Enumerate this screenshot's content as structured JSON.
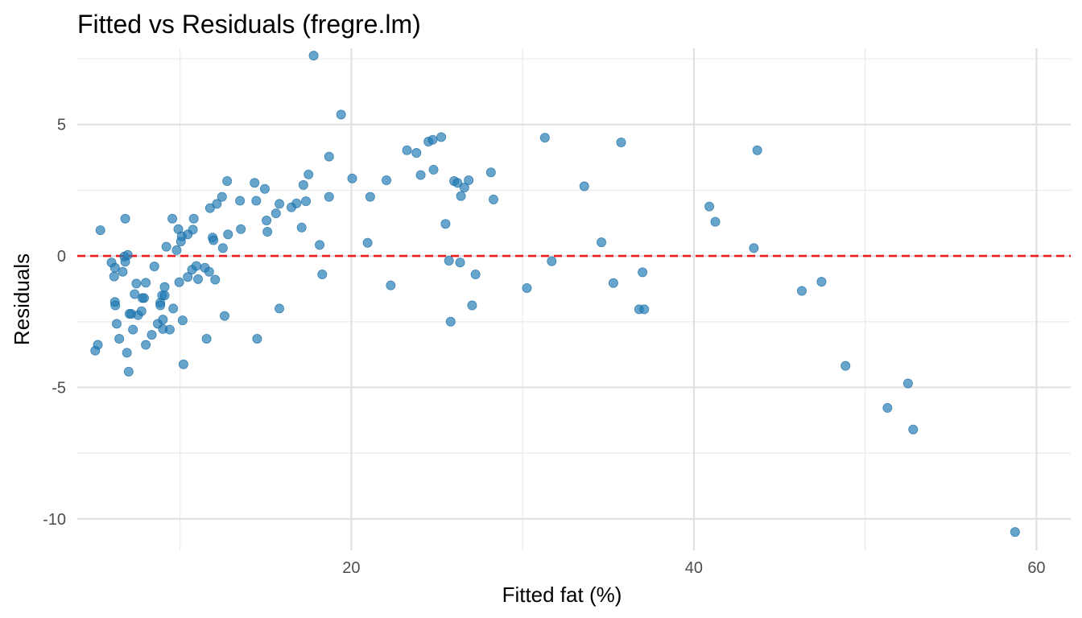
{
  "chart_data": {
    "type": "scatter",
    "title": "Fitted vs Residuals (fregre.lm)",
    "xlabel": "Fitted fat (%)",
    "ylabel": "Residuals",
    "xlim": [
      4,
      62
    ],
    "ylim": [
      -11.2,
      7.9
    ],
    "x_major_ticks": [
      20,
      40,
      60
    ],
    "x_minor_ticks": [
      10,
      30,
      50
    ],
    "y_major_ticks": [
      5,
      0,
      -5,
      -10
    ],
    "y_minor_ticks": [
      7.5,
      2.5,
      -2.5,
      -7.5
    ],
    "x_tick_labels": [
      "20",
      "40",
      "60"
    ],
    "y_tick_labels": [
      "5",
      "0",
      "-5",
      "-10"
    ],
    "grid": true,
    "reference_line": {
      "y": 0,
      "style": "dashed",
      "color": "#ee1c1c"
    },
    "point_color": "#1f7bb4",
    "point_opacity": 0.68,
    "points": [
      [
        5.05,
        -3.6
      ],
      [
        5.2,
        -3.38
      ],
      [
        5.35,
        0.98
      ],
      [
        6.0,
        -0.25
      ],
      [
        6.15,
        -0.78
      ],
      [
        6.2,
        -0.45
      ],
      [
        6.2,
        -1.75
      ],
      [
        6.22,
        -1.88
      ],
      [
        6.3,
        -2.58
      ],
      [
        6.45,
        -3.15
      ],
      [
        6.65,
        -0.6
      ],
      [
        6.75,
        -0.02
      ],
      [
        6.8,
        1.42
      ],
      [
        6.8,
        -0.22
      ],
      [
        6.9,
        -3.68
      ],
      [
        6.95,
        0.04
      ],
      [
        7.0,
        -4.4
      ],
      [
        7.05,
        -2.2
      ],
      [
        7.15,
        -2.2
      ],
      [
        7.25,
        -2.8
      ],
      [
        7.35,
        -1.45
      ],
      [
        7.45,
        -1.05
      ],
      [
        7.55,
        -2.25
      ],
      [
        7.75,
        -2.1
      ],
      [
        7.8,
        -1.6
      ],
      [
        7.9,
        -1.6
      ],
      [
        8.0,
        -3.38
      ],
      [
        8.0,
        -1.02
      ],
      [
        8.35,
        -3.0
      ],
      [
        8.5,
        -0.4
      ],
      [
        8.7,
        -2.58
      ],
      [
        8.85,
        -1.78
      ],
      [
        8.85,
        -1.88
      ],
      [
        8.95,
        -1.5
      ],
      [
        9.0,
        -2.42
      ],
      [
        9.0,
        -2.78
      ],
      [
        9.1,
        -1.18
      ],
      [
        9.1,
        -1.5
      ],
      [
        9.2,
        0.35
      ],
      [
        9.4,
        -2.8
      ],
      [
        9.55,
        1.42
      ],
      [
        9.6,
        -2.0
      ],
      [
        9.8,
        0.22
      ],
      [
        9.9,
        1.02
      ],
      [
        9.95,
        -1.0
      ],
      [
        10.05,
        0.55
      ],
      [
        10.1,
        0.75
      ],
      [
        10.15,
        -2.45
      ],
      [
        10.2,
        -4.12
      ],
      [
        10.45,
        0.82
      ],
      [
        10.45,
        -0.8
      ],
      [
        10.7,
        -0.52
      ],
      [
        10.75,
        1.0
      ],
      [
        10.8,
        1.42
      ],
      [
        10.95,
        -0.38
      ],
      [
        11.05,
        -0.88
      ],
      [
        11.45,
        -0.45
      ],
      [
        11.55,
        -3.15
      ],
      [
        11.7,
        -0.6
      ],
      [
        11.75,
        1.82
      ],
      [
        11.9,
        0.7
      ],
      [
        11.95,
        0.6
      ],
      [
        12.05,
        -0.9
      ],
      [
        12.15,
        1.98
      ],
      [
        12.45,
        2.25
      ],
      [
        12.5,
        0.3
      ],
      [
        12.6,
        -2.28
      ],
      [
        12.75,
        2.85
      ],
      [
        12.8,
        0.82
      ],
      [
        13.5,
        2.1
      ],
      [
        13.55,
        1.02
      ],
      [
        14.35,
        2.78
      ],
      [
        14.45,
        2.1
      ],
      [
        14.5,
        -3.15
      ],
      [
        14.95,
        2.55
      ],
      [
        15.05,
        1.35
      ],
      [
        15.1,
        0.92
      ],
      [
        15.6,
        1.62
      ],
      [
        15.8,
        1.98
      ],
      [
        15.8,
        -2.0
      ],
      [
        16.5,
        1.85
      ],
      [
        16.8,
        2.0
      ],
      [
        17.1,
        1.08
      ],
      [
        17.2,
        2.7
      ],
      [
        17.35,
        2.08
      ],
      [
        17.5,
        3.1
      ],
      [
        17.8,
        7.62
      ],
      [
        18.15,
        0.42
      ],
      [
        18.3,
        -0.7
      ],
      [
        18.7,
        3.78
      ],
      [
        18.7,
        2.25
      ],
      [
        19.4,
        5.38
      ],
      [
        20.05,
        2.95
      ],
      [
        20.95,
        0.5
      ],
      [
        21.1,
        2.25
      ],
      [
        22.05,
        2.88
      ],
      [
        22.3,
        -1.12
      ],
      [
        23.25,
        4.02
      ],
      [
        23.8,
        3.92
      ],
      [
        24.05,
        3.08
      ],
      [
        24.5,
        4.35
      ],
      [
        24.75,
        4.42
      ],
      [
        24.8,
        3.28
      ],
      [
        25.25,
        4.52
      ],
      [
        25.5,
        1.22
      ],
      [
        25.7,
        -0.18
      ],
      [
        25.8,
        -2.5
      ],
      [
        26.0,
        2.85
      ],
      [
        26.2,
        2.78
      ],
      [
        26.35,
        -0.25
      ],
      [
        26.4,
        2.28
      ],
      [
        26.6,
        2.6
      ],
      [
        26.85,
        2.88
      ],
      [
        27.05,
        -1.88
      ],
      [
        27.25,
        -0.7
      ],
      [
        28.15,
        3.18
      ],
      [
        28.3,
        2.15
      ],
      [
        30.25,
        -1.22
      ],
      [
        31.3,
        4.5
      ],
      [
        31.7,
        -0.2
      ],
      [
        33.6,
        2.65
      ],
      [
        34.6,
        0.52
      ],
      [
        35.3,
        -1.03
      ],
      [
        35.75,
        4.32
      ],
      [
        36.8,
        -2.03
      ],
      [
        37.0,
        -0.62
      ],
      [
        37.1,
        -2.03
      ],
      [
        40.9,
        1.88
      ],
      [
        41.25,
        1.3
      ],
      [
        43.5,
        0.3
      ],
      [
        43.7,
        4.02
      ],
      [
        46.3,
        -1.33
      ],
      [
        47.45,
        -0.98
      ],
      [
        48.85,
        -4.18
      ],
      [
        51.3,
        -5.78
      ],
      [
        52.5,
        -4.85
      ],
      [
        52.8,
        -6.6
      ],
      [
        58.75,
        -10.5
      ]
    ]
  }
}
